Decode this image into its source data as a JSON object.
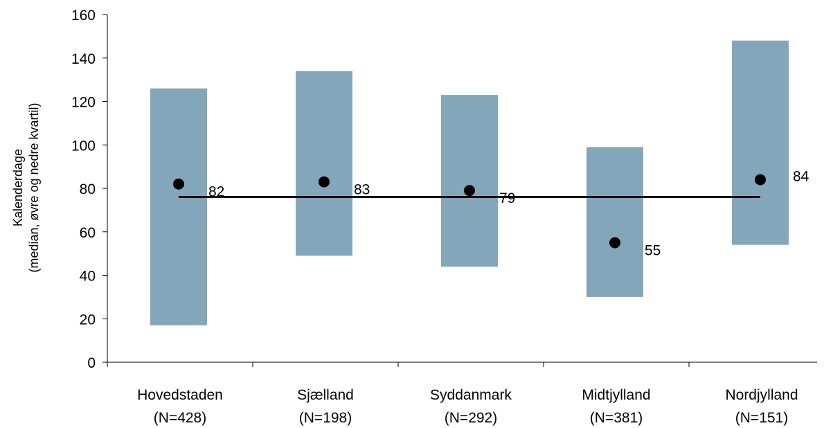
{
  "chart_data": {
    "type": "box-range",
    "ylabel_line1": "Kalenderdage",
    "ylabel_line2": "(median, øvre og nedre kvartil)",
    "ylim": [
      0,
      160
    ],
    "yticks": [
      0,
      20,
      40,
      60,
      80,
      100,
      120,
      140,
      160
    ],
    "categories": [
      {
        "name": "Hovedstaden",
        "n": "(N=428)"
      },
      {
        "name": "Sjælland",
        "n": "(N=198)"
      },
      {
        "name": "Syddanmark",
        "n": "(N=292)"
      },
      {
        "name": "Midtjylland",
        "n": "(N=381)"
      },
      {
        "name": "Nordjylland",
        "n": "(N=151)"
      }
    ],
    "series": [
      {
        "key": "lower_quartile",
        "values": [
          17,
          49,
          44,
          30,
          54
        ]
      },
      {
        "key": "upper_quartile",
        "values": [
          126,
          134,
          123,
          99,
          148
        ]
      },
      {
        "key": "median",
        "values": [
          82,
          83,
          79,
          55,
          84
        ]
      }
    ],
    "data_labels": [
      "82",
      "83",
      "79",
      "55",
      "84"
    ],
    "reference_line": 76,
    "colors": {
      "box": "#84a6ba",
      "median_marker": "#000000",
      "reference_line": "#000000",
      "axis": "#000000"
    },
    "grid": false,
    "legend": "none"
  }
}
